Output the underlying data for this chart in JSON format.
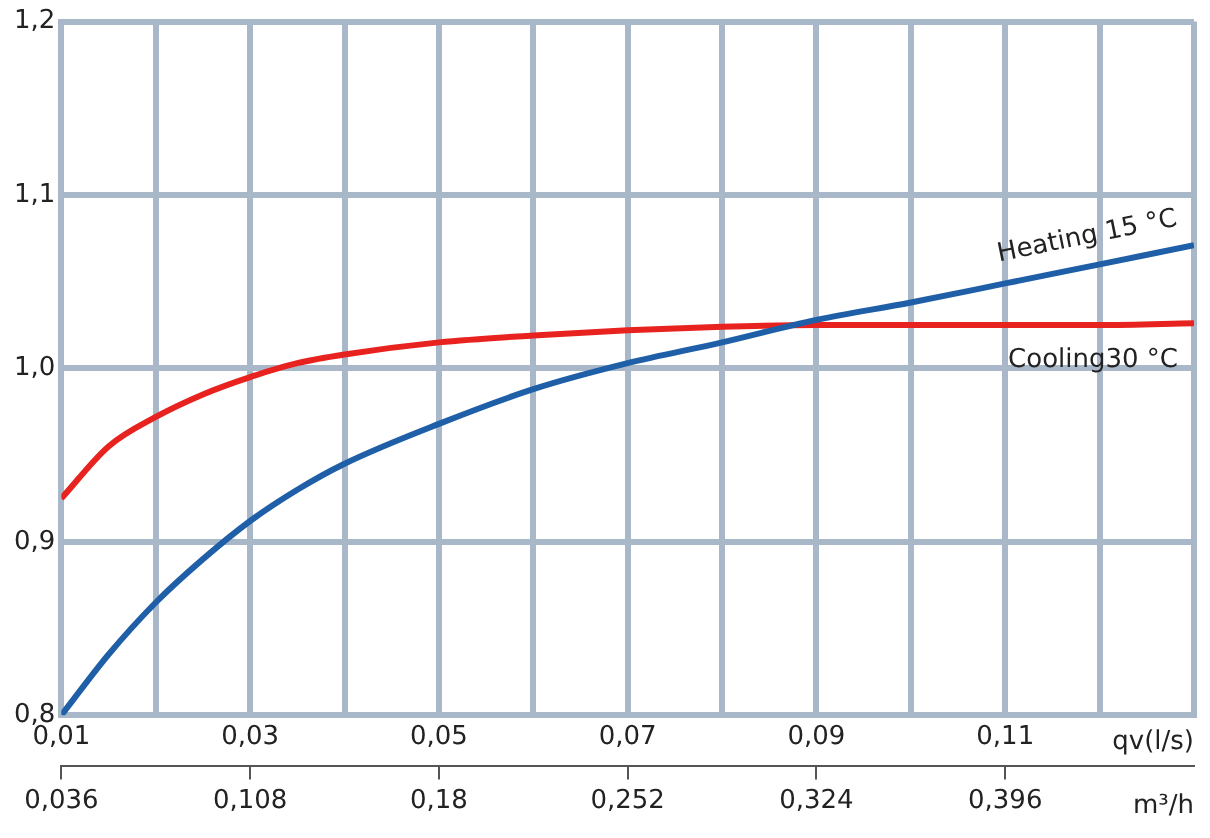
{
  "chart_data": {
    "type": "line",
    "xlabel": "qv(l/s)",
    "x2label": "m³/h",
    "xlim": [
      0.01,
      0.13
    ],
    "xticks": [
      {
        "value": 0.01,
        "label": "0,01"
      },
      {
        "value": 0.02,
        "label": null
      },
      {
        "value": 0.03,
        "label": "0,03"
      },
      {
        "value": 0.04,
        "label": null
      },
      {
        "value": 0.05,
        "label": "0,05"
      },
      {
        "value": 0.06,
        "label": null
      },
      {
        "value": 0.07,
        "label": "0,07"
      },
      {
        "value": 0.08,
        "label": null
      },
      {
        "value": 0.09,
        "label": "0,09"
      },
      {
        "value": 0.1,
        "label": null
      },
      {
        "value": 0.11,
        "label": "0,11"
      },
      {
        "value": 0.12,
        "label": null
      },
      {
        "value": 0.13,
        "label": null
      }
    ],
    "x2lim": [
      0.036,
      0.468
    ],
    "x2ticks": [
      {
        "value": 0.036,
        "label": "0,036"
      },
      {
        "value": 0.108,
        "label": "0,108"
      },
      {
        "value": 0.18,
        "label": "0,18"
      },
      {
        "value": 0.252,
        "label": "0,252"
      },
      {
        "value": 0.324,
        "label": "0,324"
      },
      {
        "value": 0.396,
        "label": "0,396"
      }
    ],
    "ylim": [
      0.8,
      1.2
    ],
    "yticks": [
      {
        "value": 0.8,
        "label": "0,8"
      },
      {
        "value": 0.9,
        "label": "0,9"
      },
      {
        "value": 1.0,
        "label": "1,0"
      },
      {
        "value": 1.1,
        "label": "1,1"
      },
      {
        "value": 1.2,
        "label": "1,2"
      }
    ],
    "grid": true,
    "legend": false,
    "marker": "none",
    "line_style": "solid",
    "x": [
      0.01,
      0.015,
      0.02,
      0.025,
      0.03,
      0.035,
      0.04,
      0.05,
      0.06,
      0.07,
      0.08,
      0.09,
      0.1,
      0.11,
      0.12,
      0.13
    ],
    "series": [
      {
        "name": "Heating 15 °C",
        "color": "#1f5fa8",
        "values": [
          0.8,
          0.835,
          0.865,
          0.89,
          0.912,
          0.93,
          0.945,
          0.968,
          0.988,
          1.003,
          1.015,
          1.028,
          1.038,
          1.049,
          1.06,
          1.071
        ]
      },
      {
        "name": "Cooling30 °C",
        "color": "#e8231f",
        "values": [
          0.925,
          0.955,
          0.972,
          0.985,
          0.995,
          1.003,
          1.008,
          1.015,
          1.019,
          1.022,
          1.024,
          1.025,
          1.025,
          1.025,
          1.025,
          1.026
        ]
      }
    ]
  }
}
